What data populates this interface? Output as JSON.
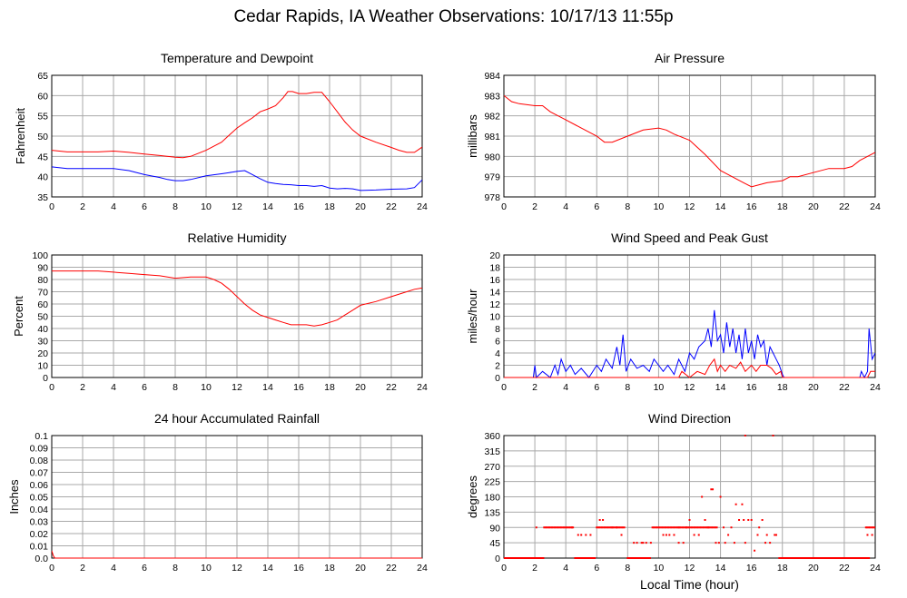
{
  "page_title": "Cedar Rapids, IA Weather Observations: 10/17/13 11:55p",
  "colors": {
    "red": "#ff0000",
    "blue": "#0000ff",
    "grid": "#a9a9a9"
  },
  "chart_data": [
    {
      "id": "temp",
      "type": "line",
      "title": "Temperature and Dewpoint",
      "xlabel": "",
      "ylabel": "Fahrenheit",
      "xlim": [
        0,
        24
      ],
      "ylim": [
        35,
        65
      ],
      "xticks": [
        0,
        2,
        4,
        6,
        8,
        10,
        12,
        14,
        16,
        18,
        20,
        22,
        24
      ],
      "yticks": [
        35,
        40,
        45,
        50,
        55,
        60,
        65
      ],
      "grid": true,
      "series": [
        {
          "color": "#ff0000",
          "x": [
            0,
            1,
            2,
            3,
            4,
            5,
            6,
            7,
            8,
            8.5,
            9,
            10,
            11,
            12,
            12.5,
            13,
            13.5,
            14,
            14.5,
            15,
            15.3,
            15.6,
            16,
            16.5,
            17,
            17.5,
            18,
            18.5,
            19,
            19.5,
            20,
            21,
            22,
            22.5,
            23,
            23.5,
            24
          ],
          "y": [
            46.5,
            46.1,
            46.1,
            46.1,
            46.3,
            46,
            45.6,
            45.2,
            44.8,
            44.7,
            45,
            46.5,
            48.5,
            52,
            53.3,
            54.5,
            56,
            56.7,
            57.5,
            59.5,
            61,
            61,
            60.5,
            60.5,
            60.8,
            60.8,
            58.5,
            56,
            53.5,
            51.5,
            50,
            48.5,
            47.2,
            46.5,
            46,
            46,
            47.3
          ]
        },
        {
          "color": "#0000ff",
          "x": [
            0,
            1,
            2,
            3,
            4,
            5,
            6,
            7,
            7.5,
            8,
            8.5,
            9,
            10,
            11,
            11.5,
            12,
            12.5,
            13,
            13.5,
            14,
            14.5,
            15,
            15.5,
            16,
            16.5,
            17,
            17.5,
            18,
            18.5,
            19,
            19.5,
            20,
            21,
            22,
            23,
            23.5,
            24
          ],
          "y": [
            42.4,
            42,
            42,
            42,
            42,
            41.5,
            40.5,
            39.8,
            39.3,
            39,
            39,
            39.3,
            40.2,
            40.7,
            41,
            41.3,
            41.5,
            40.5,
            39.5,
            38.6,
            38.3,
            38.1,
            38,
            37.8,
            37.8,
            37.6,
            37.8,
            37.2,
            37,
            37.1,
            37,
            36.6,
            36.7,
            36.9,
            37,
            37.3,
            39.2
          ]
        }
      ]
    },
    {
      "id": "pressure",
      "type": "line",
      "title": "Air Pressure",
      "xlabel": "",
      "ylabel": "millibars",
      "xlim": [
        0,
        24
      ],
      "ylim": [
        978,
        984
      ],
      "xticks": [
        0,
        2,
        4,
        6,
        8,
        10,
        12,
        14,
        16,
        18,
        20,
        22,
        24
      ],
      "yticks": [
        978,
        979,
        980,
        981,
        982,
        983,
        984
      ],
      "grid": true,
      "series": [
        {
          "color": "#ff0000",
          "x": [
            0,
            0.5,
            1,
            2,
            2.5,
            3,
            4,
            5,
            6,
            6.5,
            7,
            8,
            9,
            10,
            10.5,
            11,
            12,
            13,
            14,
            15,
            15.5,
            16,
            16.5,
            17,
            18,
            18.5,
            19,
            20,
            21,
            22,
            22.5,
            23,
            24
          ],
          "y": [
            983,
            982.7,
            982.6,
            982.5,
            982.5,
            982.2,
            981.8,
            981.4,
            981,
            980.7,
            980.7,
            981,
            981.3,
            981.4,
            981.3,
            981.1,
            980.8,
            980.1,
            979.3,
            978.9,
            978.7,
            978.5,
            978.6,
            978.7,
            978.8,
            979,
            979,
            979.2,
            979.4,
            979.4,
            979.5,
            979.8,
            980.2
          ]
        }
      ]
    },
    {
      "id": "humidity",
      "type": "line",
      "title": "Relative Humidity",
      "xlabel": "",
      "ylabel": "Percent",
      "xlim": [
        0,
        24
      ],
      "ylim": [
        0,
        100
      ],
      "xticks": [
        0,
        2,
        4,
        6,
        8,
        10,
        12,
        14,
        16,
        18,
        20,
        22,
        24
      ],
      "yticks": [
        0,
        10,
        20,
        30,
        40,
        50,
        60,
        70,
        80,
        90,
        100
      ],
      "grid": true,
      "series": [
        {
          "color": "#ff0000",
          "x": [
            0,
            1,
            2,
            3,
            4,
            5,
            6,
            7,
            8,
            9,
            10,
            10.5,
            11,
            11.5,
            12,
            12.5,
            13,
            13.5,
            14,
            14.5,
            15,
            15.5,
            16,
            16.5,
            17,
            17.5,
            18,
            18.5,
            19,
            19.5,
            20,
            21,
            22,
            23,
            23.5,
            24
          ],
          "y": [
            87,
            87,
            87,
            87,
            86,
            85,
            84,
            83,
            81,
            82,
            82,
            80,
            77,
            72,
            66,
            60,
            55,
            51,
            49,
            47,
            45,
            43,
            43,
            43,
            42,
            43,
            45,
            47,
            51,
            55,
            59,
            62,
            66,
            70,
            72,
            73
          ]
        }
      ]
    },
    {
      "id": "wind",
      "type": "line",
      "title": "Wind Speed and Peak Gust",
      "xlabel": "",
      "ylabel": "miles/hour",
      "xlim": [
        0,
        24
      ],
      "ylim": [
        0,
        20
      ],
      "xticks": [
        0,
        2,
        4,
        6,
        8,
        10,
        12,
        14,
        16,
        18,
        20,
        22,
        24
      ],
      "yticks": [
        0,
        2,
        4,
        6,
        8,
        10,
        12,
        14,
        16,
        18,
        20
      ],
      "grid": true,
      "series": [
        {
          "color": "#0000ff",
          "x": [
            0,
            1.9,
            2,
            2.1,
            2.5,
            3,
            3.3,
            3.5,
            3.7,
            4,
            4.3,
            4.6,
            5,
            5.5,
            6,
            6.3,
            6.6,
            7,
            7.3,
            7.5,
            7.7,
            7.9,
            8.2,
            8.6,
            9,
            9.4,
            9.7,
            10,
            10.3,
            10.6,
            11,
            11.3,
            11.7,
            12,
            12.3,
            12.6,
            13,
            13.2,
            13.4,
            13.6,
            13.8,
            14,
            14.2,
            14.4,
            14.6,
            14.8,
            15,
            15.2,
            15.4,
            15.6,
            15.8,
            16,
            16.2,
            16.4,
            16.6,
            16.8,
            17,
            17.2,
            17.4,
            17.6,
            17.8,
            18,
            18.1,
            23,
            23.1,
            23.3,
            23.5,
            23.6,
            23.8,
            24
          ],
          "y": [
            0,
            0,
            2,
            0,
            1,
            0,
            2,
            0.5,
            3,
            1,
            2,
            0.5,
            1.5,
            0,
            2,
            1,
            3,
            1.5,
            5,
            2,
            7,
            1,
            3,
            1.5,
            2,
            1,
            3,
            2,
            1,
            2,
            0.5,
            3,
            1,
            4,
            3,
            5,
            6,
            8,
            5,
            11,
            6,
            7,
            4,
            9,
            5,
            8,
            4,
            7,
            3,
            8,
            4,
            6,
            3,
            7,
            5,
            6,
            2,
            5,
            4,
            3,
            2,
            0.5,
            0,
            0,
            1,
            0,
            1,
            8,
            3,
            4
          ]
        },
        {
          "color": "#ff0000",
          "x": [
            0,
            11.3,
            11.5,
            12,
            12.5,
            13,
            13.3,
            13.6,
            13.8,
            14,
            14.3,
            14.6,
            15,
            15.3,
            15.6,
            16,
            16.3,
            16.6,
            17,
            17.3,
            17.6,
            17.9,
            18,
            23.5,
            23.7,
            24
          ],
          "y": [
            0,
            0,
            1,
            0,
            1,
            0.5,
            2,
            3,
            1,
            2,
            1,
            2,
            1.5,
            2.5,
            1,
            2,
            1,
            2,
            2,
            1.5,
            0.5,
            1,
            0,
            0,
            1,
            1
          ]
        }
      ]
    },
    {
      "id": "rain",
      "type": "line",
      "title": "24 hour Accumulated Rainfall",
      "xlabel": "",
      "ylabel": "Inches",
      "xlim": [
        0,
        24
      ],
      "ylim": [
        0,
        0.1
      ],
      "xticks": [
        0,
        2,
        4,
        6,
        8,
        10,
        12,
        14,
        16,
        18,
        20,
        22,
        24
      ],
      "yticks": [
        0.0,
        0.01,
        0.02,
        0.03,
        0.04,
        0.05,
        0.06,
        0.07,
        0.08,
        0.09,
        0.1
      ],
      "ytick_labels": [
        "0.0",
        "0.01",
        "0.02",
        "0.03",
        "0.04",
        "0.05",
        "0.06",
        "0.07",
        "0.08",
        "0.09",
        "0.1"
      ],
      "grid": true,
      "series": [
        {
          "color": "#ff0000",
          "x": [
            0,
            0.1,
            0.2,
            24
          ],
          "y": [
            0.006,
            0.002,
            0,
            0
          ]
        }
      ]
    },
    {
      "id": "winddir",
      "type": "scatter",
      "title": "Wind Direction",
      "xlabel": "Local Time (hour)",
      "ylabel": "degrees",
      "xlim": [
        0,
        24
      ],
      "ylim": [
        0,
        360
      ],
      "xticks": [
        0,
        2,
        4,
        6,
        8,
        10,
        12,
        14,
        16,
        18,
        20,
        22,
        24
      ],
      "yticks": [
        0,
        45,
        90,
        135,
        180,
        225,
        270,
        315,
        360
      ],
      "grid": true,
      "series": [
        {
          "color": "#ff0000",
          "segments": [
            {
              "from": 0,
              "to": 2.6,
              "y": 0
            },
            {
              "from": 2.6,
              "to": 4.5,
              "y": 90
            },
            {
              "from": 4.6,
              "to": 5.9,
              "y": 0
            },
            {
              "from": 6.0,
              "to": 7.8,
              "y": 90
            },
            {
              "from": 8.0,
              "to": 9.5,
              "y": 0
            },
            {
              "from": 9.6,
              "to": 11.3,
              "y": 90
            },
            {
              "from": 11.3,
              "to": 13.8,
              "y": 90
            },
            {
              "from": 17.8,
              "to": 23.0,
              "y": 0
            },
            {
              "from": 23.0,
              "to": 23.6,
              "y": 0
            },
            {
              "from": 23.4,
              "to": 24,
              "y": 90
            }
          ],
          "x": [
            2.1,
            4.4,
            4.8,
            5.0,
            5.3,
            5.6,
            6.2,
            6.4,
            7.0,
            7.3,
            7.6,
            8.4,
            8.6,
            8.9,
            9.0,
            9.2,
            9.5,
            10.3,
            10.5,
            10.7,
            11.0,
            11.3,
            11.6,
            11.8,
            12.0,
            12.3,
            12.6,
            12.8,
            13.0,
            13.2,
            13.4,
            13.5,
            13.7,
            13.9,
            14.0,
            14.2,
            14.3,
            14.5,
            14.7,
            14.9,
            15.0,
            15.2,
            15.4,
            15.5,
            15.6,
            15.8,
            16.0,
            16.2,
            16.4,
            16.5,
            16.7,
            16.9,
            17.0,
            17.2,
            17.4,
            17.6,
            15.6,
            17.5,
            17.6,
            23.5,
            23.8
          ],
          "y": [
            90,
            90,
            68,
            68,
            68,
            68,
            112,
            112,
            90,
            90,
            68,
            45,
            45,
            45,
            45,
            45,
            45,
            68,
            68,
            68,
            68,
            45,
            45,
            90,
            112,
            68,
            68,
            180,
            112,
            90,
            202,
            202,
            45,
            45,
            180,
            90,
            45,
            68,
            90,
            45,
            158,
            112,
            158,
            112,
            360,
            112,
            112,
            22,
            68,
            90,
            112,
            45,
            68,
            45,
            360,
            68,
            45,
            68,
            68,
            68,
            68
          ]
        }
      ]
    }
  ]
}
